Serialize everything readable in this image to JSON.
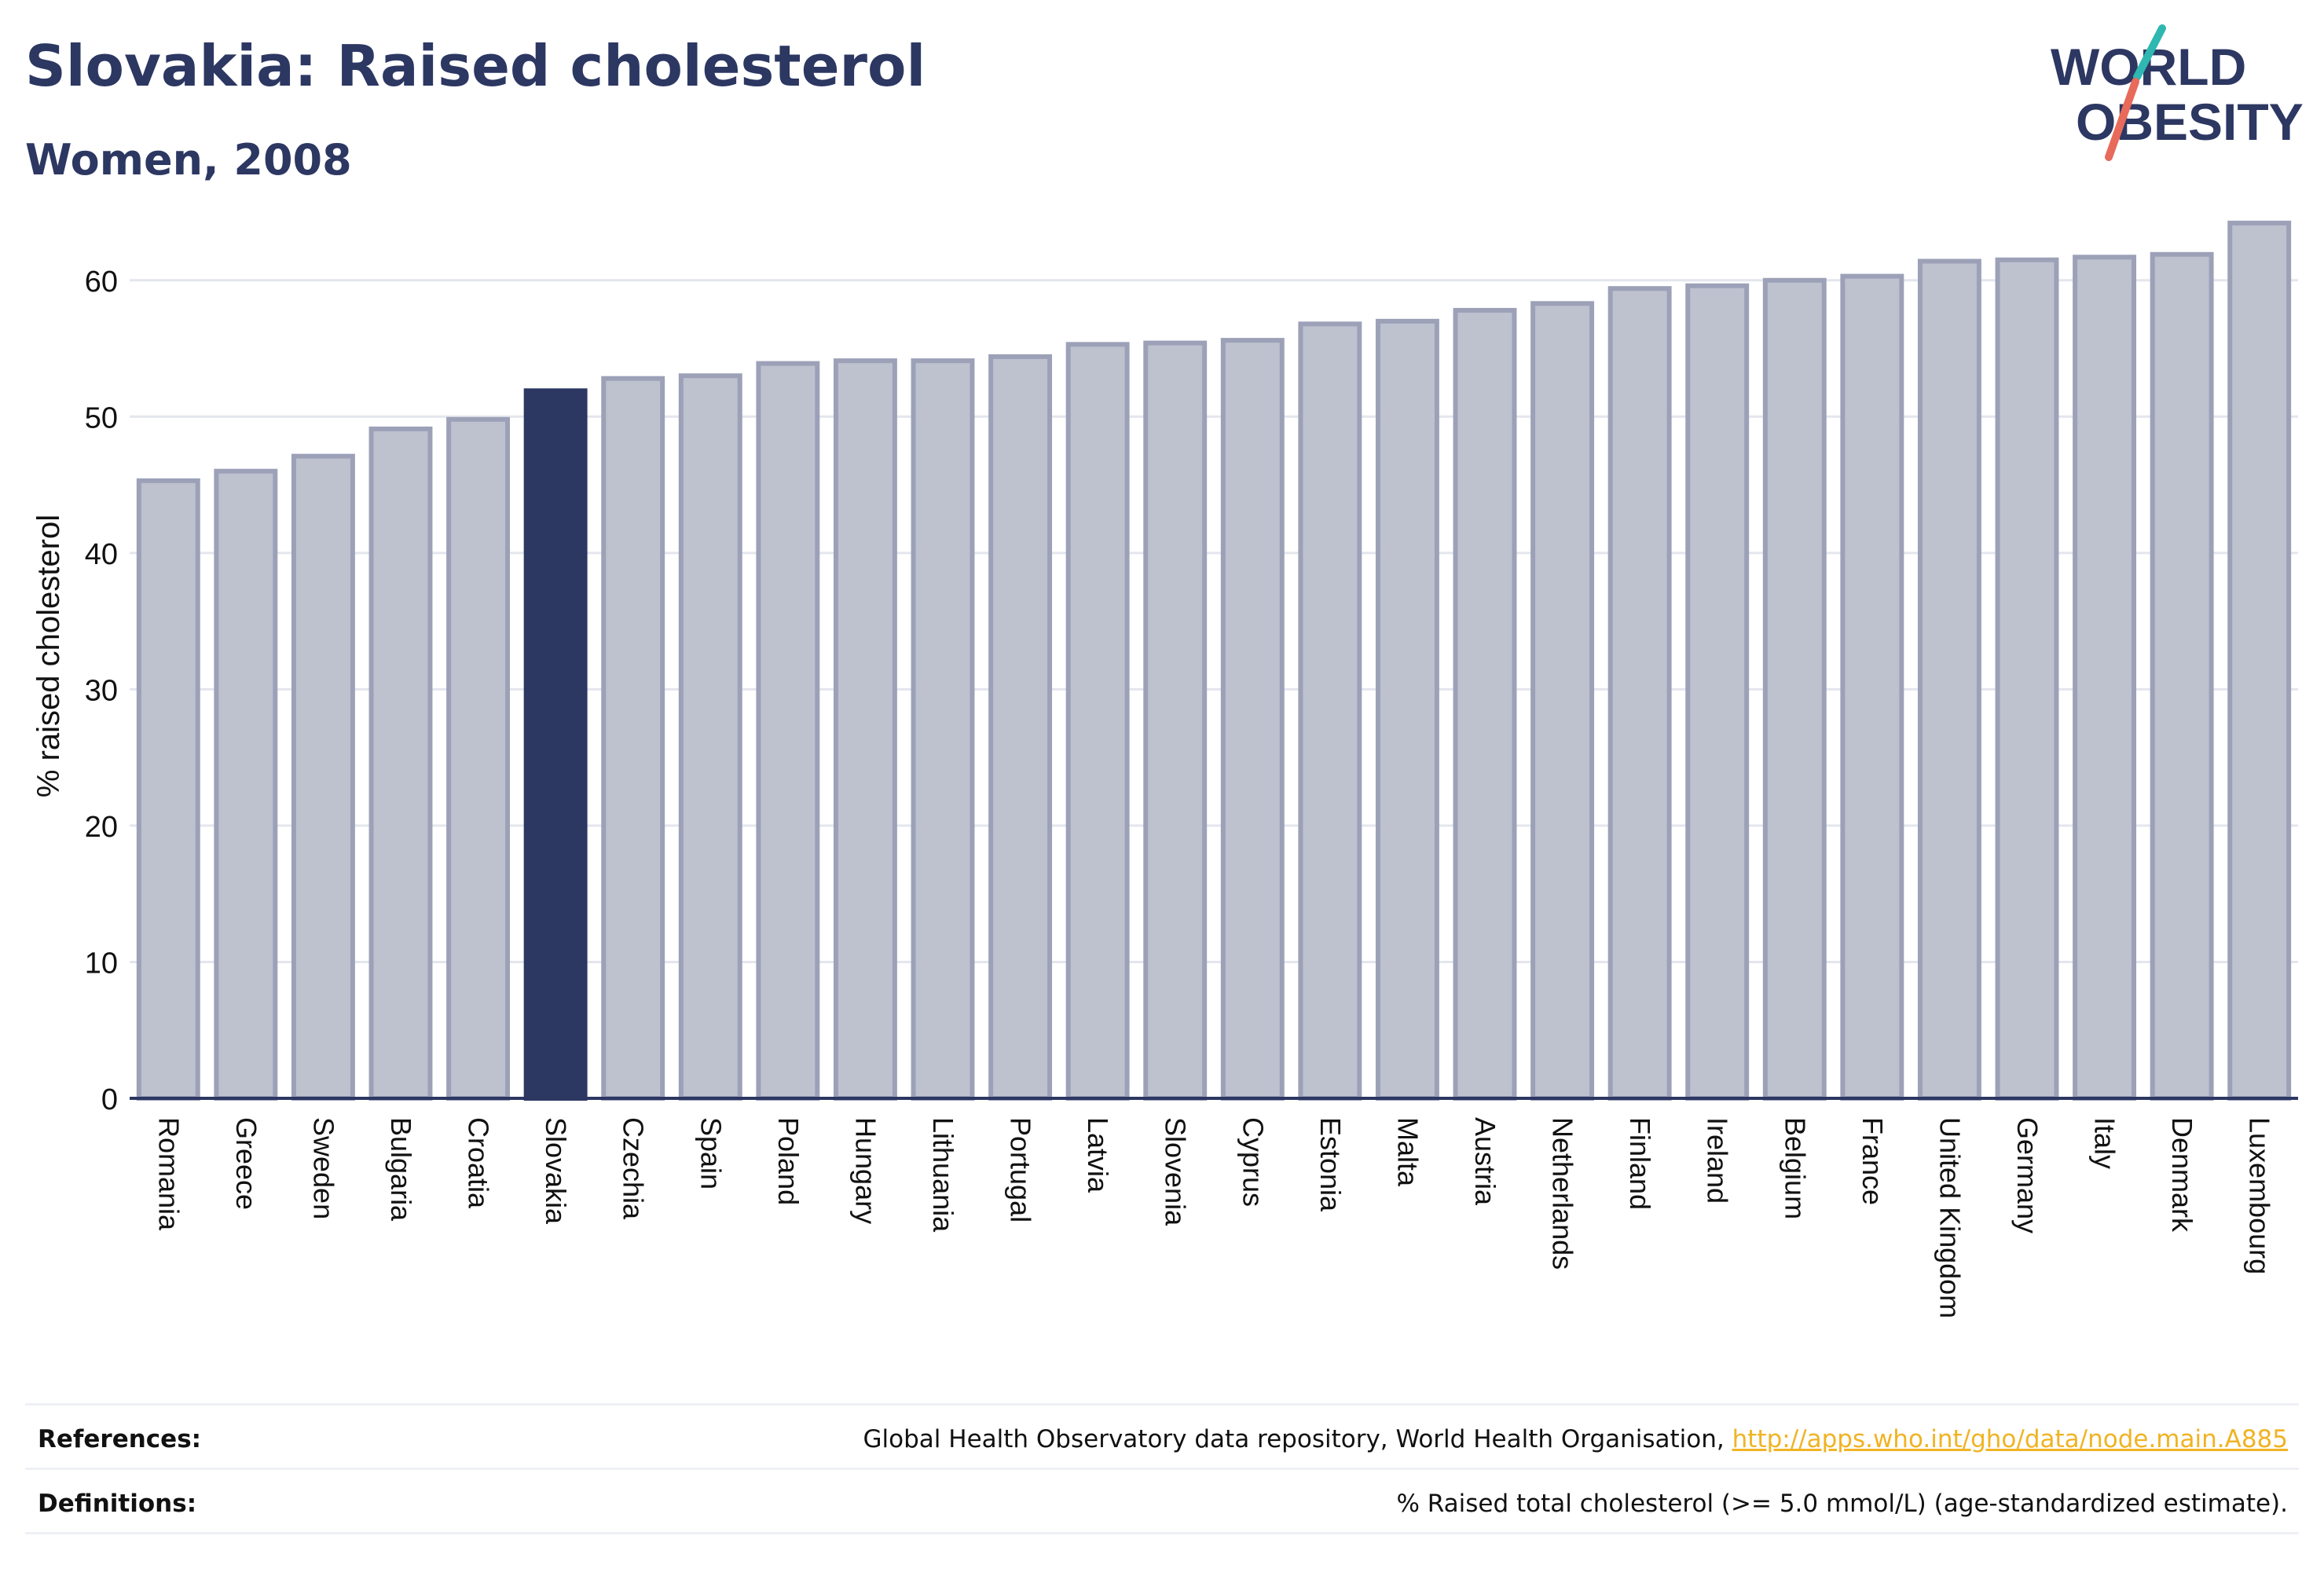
{
  "title": "Slovakia: Raised cholesterol",
  "subtitle": "Women, 2008",
  "logo": {
    "line1": "WORLD",
    "line2": "OBESITY"
  },
  "colors": {
    "highlight": "#2c3762",
    "bar_fill": "#bec1ce",
    "bar_stroke": "#9ca1b8",
    "text_dark": "#2c3762",
    "link": "#f0b323",
    "grid": "#e4e6ee"
  },
  "chart_data": {
    "type": "bar",
    "ylabel": "% raised cholesterol",
    "xlabel": "",
    "ylim": [
      0,
      65
    ],
    "yticks": [
      0,
      10,
      20,
      30,
      40,
      50,
      60
    ],
    "grid": true,
    "highlight": "Slovakia",
    "categories": [
      "Romania",
      "Greece",
      "Sweden",
      "Bulgaria",
      "Croatia",
      "Slovakia",
      "Czechia",
      "Spain",
      "Poland",
      "Hungary",
      "Lithuania",
      "Portugal",
      "Latvia",
      "Slovenia",
      "Cyprus",
      "Estonia",
      "Malta",
      "Austria",
      "Netherlands",
      "Finland",
      "Ireland",
      "Belgium",
      "France",
      "United Kingdom",
      "Germany",
      "Italy",
      "Denmark",
      "Luxembourg"
    ],
    "values": [
      45.3,
      46.0,
      47.1,
      49.1,
      49.8,
      51.9,
      52.8,
      53.0,
      53.9,
      54.1,
      54.1,
      54.4,
      55.3,
      55.4,
      55.6,
      56.8,
      57.0,
      57.8,
      58.3,
      59.4,
      59.6,
      60.0,
      60.3,
      61.4,
      61.5,
      61.7,
      61.9,
      64.2
    ]
  },
  "footer": {
    "references_label": "References:",
    "references_text": "Global Health Observatory data repository, World Health Organisation, ",
    "references_link": "http://apps.who.int/gho/data/node.main.A885",
    "definitions_label": "Definitions:",
    "definitions_text": "% Raised total cholesterol (>= 5.0 mmol/L) (age-standardized estimate)."
  }
}
